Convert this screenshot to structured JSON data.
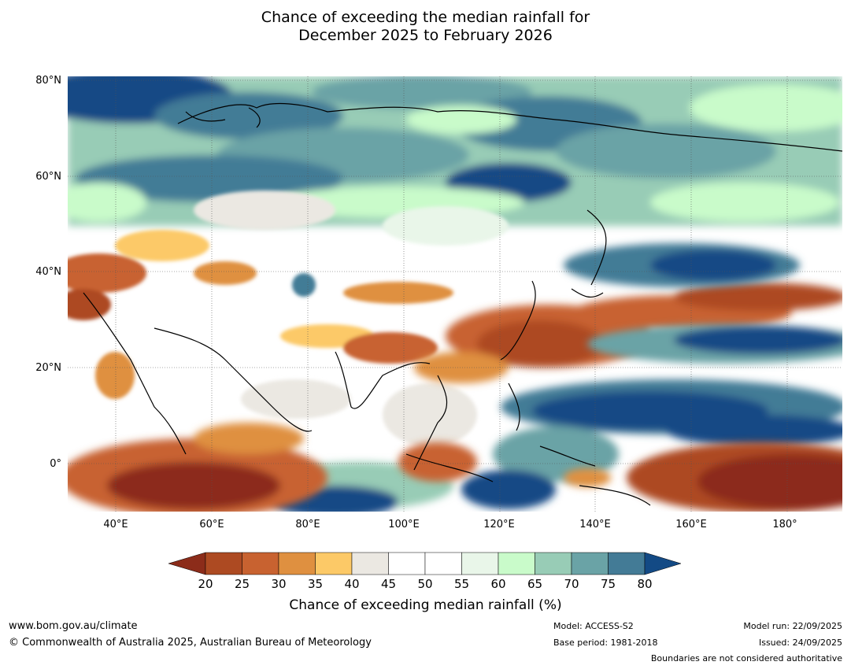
{
  "title": {
    "line1": "Chance of exceeding the median rainfall for",
    "line2": "December 2025 to February 2026"
  },
  "map": {
    "lat_labels": [
      "80°N",
      "60°N",
      "40°N",
      "20°N",
      "0°"
    ],
    "lon_labels": [
      "40°E",
      "60°E",
      "80°E",
      "100°E",
      "120°E",
      "140°E",
      "160°E",
      "180°"
    ],
    "extent": {
      "lon_min": 30,
      "lon_max": 191,
      "lat_min": -10,
      "lat_max": 80
    }
  },
  "colorbar": {
    "ticks": [
      "20",
      "25",
      "30",
      "35",
      "40",
      "45",
      "50",
      "55",
      "60",
      "65",
      "70",
      "75",
      "80"
    ],
    "colors": [
      "#8c2c1a",
      "#ad4a22",
      "#c86230",
      "#df9040",
      "#fcc967",
      "#ebe8e2",
      "#ffffff",
      "#ffffff",
      "#e9f6e9",
      "#c9fbca",
      "#98ccb6",
      "#6aa3a6",
      "#437b96",
      "#134a85"
    ],
    "label": "Chance of exceeding median rainfall (%)"
  },
  "footer": {
    "website": "www.bom.gov.au/climate",
    "copyright": "© Commonwealth of Australia 2025, Australian Bureau of Meteorology",
    "model": "Model: ACCESS-S2",
    "base_period": "Base period: 1981-2018",
    "model_run": "Model run: 22/09/2025",
    "issued": "Issued: 24/09/2025",
    "disclaimer": "Boundaries are not considered authoritative"
  }
}
